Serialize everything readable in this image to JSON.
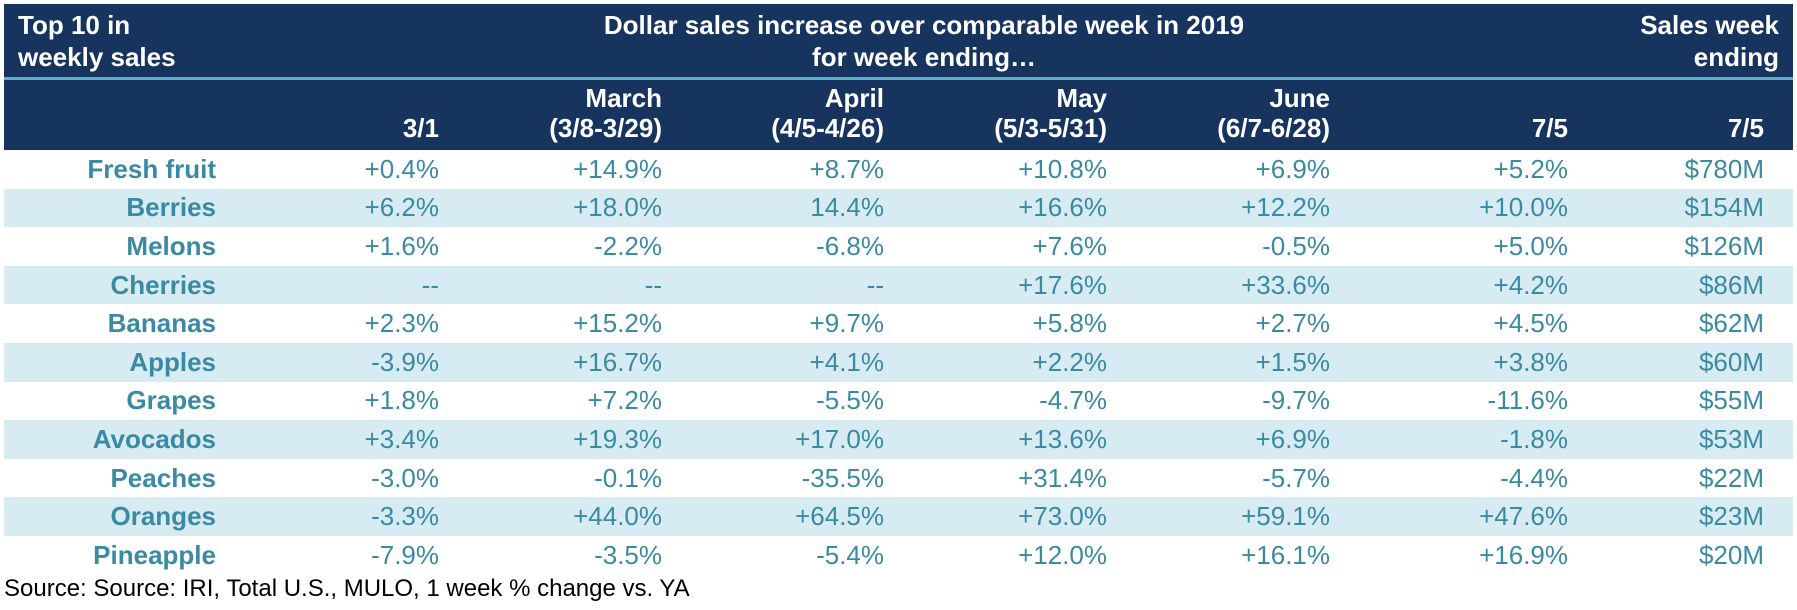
{
  "header": {
    "left_line1": "Top 10 in",
    "left_line2": "weekly sales",
    "center_line1": "Dollar sales increase over comparable week in 2019",
    "center_line2": "for week ending…",
    "right_line1": "Sales week",
    "right_line2": "ending"
  },
  "columns": [
    {
      "line1": "",
      "line2": "3/1"
    },
    {
      "line1": "March",
      "line2": "(3/8-3/29)"
    },
    {
      "line1": "April",
      "line2": "(4/5-4/26)"
    },
    {
      "line1": "May",
      "line2": "(5/3-5/31)"
    },
    {
      "line1": "June",
      "line2": "(6/7-6/28)"
    },
    {
      "line1": "",
      "line2": "7/5"
    },
    {
      "line1": "",
      "line2": "7/5"
    }
  ],
  "chart_data": {
    "type": "table",
    "column_headers": [
      "3/1",
      "March (3/8-3/29)",
      "April (4/5-4/26)",
      "May (5/3-5/31)",
      "June (6/7-6/28)",
      "7/5",
      "7/5"
    ],
    "rows": [
      {
        "label": "Fresh fruit",
        "values": [
          "+0.4%",
          "+14.9%",
          "+8.7%",
          "+10.8%",
          "+6.9%",
          "+5.2%",
          "$780M"
        ]
      },
      {
        "label": "Berries",
        "values": [
          "+6.2%",
          "+18.0%",
          "14.4%",
          "+16.6%",
          "+12.2%",
          "+10.0%",
          "$154M"
        ]
      },
      {
        "label": "Melons",
        "values": [
          "+1.6%",
          "-2.2%",
          "-6.8%",
          "+7.6%",
          "-0.5%",
          "+5.0%",
          "$126M"
        ]
      },
      {
        "label": "Cherries",
        "values": [
          "--",
          "--",
          "--",
          "+17.6%",
          "+33.6%",
          "+4.2%",
          "$86M"
        ]
      },
      {
        "label": "Bananas",
        "values": [
          "+2.3%",
          "+15.2%",
          "+9.7%",
          "+5.8%",
          "+2.7%",
          "+4.5%",
          "$62M"
        ]
      },
      {
        "label": "Apples",
        "values": [
          "-3.9%",
          "+16.7%",
          "+4.1%",
          "+2.2%",
          "+1.5%",
          "+3.8%",
          "$60M"
        ]
      },
      {
        "label": "Grapes",
        "values": [
          "+1.8%",
          "+7.2%",
          "-5.5%",
          "-4.7%",
          "-9.7%",
          "-11.6%",
          "$55M"
        ]
      },
      {
        "label": "Avocados",
        "values": [
          "+3.4%",
          "+19.3%",
          "+17.0%",
          "+13.6%",
          "+6.9%",
          "-1.8%",
          "$53M"
        ]
      },
      {
        "label": "Peaches",
        "values": [
          "-3.0%",
          "-0.1%",
          "-35.5%",
          "+31.4%",
          "-5.7%",
          "-4.4%",
          "$22M"
        ]
      },
      {
        "label": "Oranges",
        "values": [
          "-3.3%",
          "+44.0%",
          "+64.5%",
          "+73.0%",
          "+59.1%",
          "+47.6%",
          "$23M"
        ]
      },
      {
        "label": "Pineapple",
        "values": [
          "-7.9%",
          "-3.5%",
          "-5.4%",
          "+12.0%",
          "+16.1%",
          "+16.9%",
          "$20M"
        ]
      }
    ]
  },
  "source": "Source: Source: IRI, Total U.S., MULO, 1 week % change vs. YA",
  "colors": {
    "header_bg": "#17345e",
    "header_rule": "#5ab1c9",
    "row_alt": "#d6ebf2",
    "text": "#3b8aa3"
  }
}
